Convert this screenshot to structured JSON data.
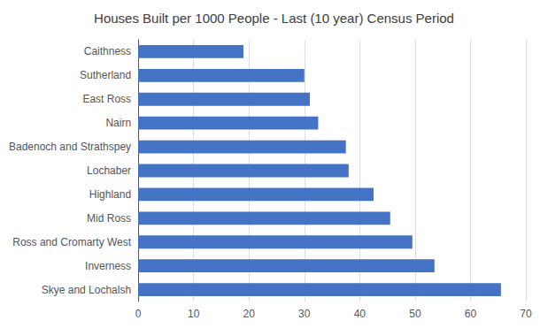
{
  "chart_data": {
    "type": "bar",
    "orientation": "horizontal",
    "title": "Houses Built per 1000 People - Last (10 year) Census Period",
    "categories": [
      "Caithness",
      "Sutherland",
      "East Ross",
      "Nairn",
      "Badenoch and Strathspey",
      "Lochaber",
      "Highland",
      "Mid Ross",
      "Ross and Cromarty West",
      "Inverness",
      "Skye and Lochalsh"
    ],
    "values": [
      19,
      30,
      31,
      32.5,
      37.5,
      38,
      42.5,
      45.5,
      49.5,
      53.5,
      65.5
    ],
    "color": "#4472C4",
    "xlim": [
      0,
      70
    ],
    "xticks": [
      0,
      10,
      20,
      30,
      40,
      50,
      60,
      70
    ],
    "grid": true
  }
}
